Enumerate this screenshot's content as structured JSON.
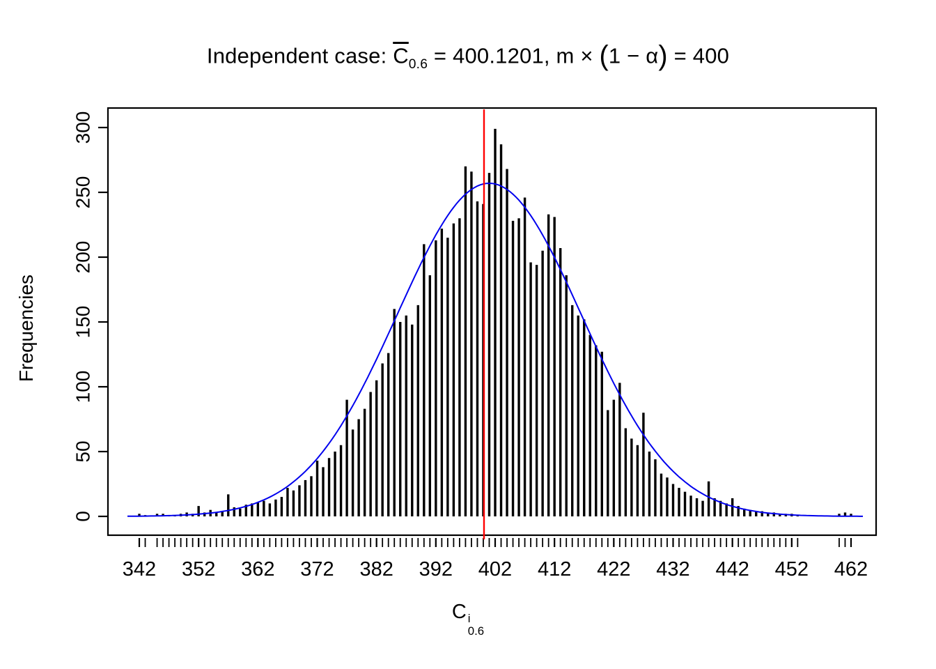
{
  "title": {
    "prefix": "Independent case: ",
    "c_base": "C",
    "c_sub": "0.6",
    "mid": " = 400.1201,  m × ",
    "paren_open": "(",
    "alpha_expr": "1 − α",
    "paren_close": ")",
    "suffix": " = 400"
  },
  "ylabel": "Frequencies",
  "xlabel": {
    "base": "C",
    "sup": "i",
    "sub": "0.6"
  },
  "chart_data": {
    "type": "bar",
    "title": "Independent case: C̄0.6 = 400.1201, m × (1 − α) = 400",
    "xlabel": "C^i_0.6",
    "ylabel": "Frequencies",
    "xlim": [
      342,
      462
    ],
    "ylim": [
      0,
      300
    ],
    "grid": false,
    "legend": false,
    "x_ticks": [
      342,
      352,
      362,
      372,
      382,
      392,
      402,
      412,
      422,
      432,
      442,
      452,
      462
    ],
    "y_ticks": [
      0,
      50,
      100,
      150,
      200,
      250,
      300
    ],
    "x_values": [
      342,
      343,
      344,
      345,
      346,
      347,
      348,
      349,
      350,
      351,
      352,
      353,
      354,
      355,
      356,
      357,
      358,
      359,
      360,
      361,
      362,
      363,
      364,
      365,
      366,
      367,
      368,
      369,
      370,
      371,
      372,
      373,
      374,
      375,
      376,
      377,
      378,
      379,
      380,
      381,
      382,
      383,
      384,
      385,
      386,
      387,
      388,
      389,
      390,
      391,
      392,
      393,
      394,
      395,
      396,
      397,
      398,
      399,
      400,
      401,
      402,
      403,
      404,
      405,
      406,
      407,
      408,
      409,
      410,
      411,
      412,
      413,
      414,
      415,
      416,
      417,
      418,
      419,
      420,
      421,
      422,
      423,
      424,
      425,
      426,
      427,
      428,
      429,
      430,
      431,
      432,
      433,
      434,
      435,
      436,
      437,
      438,
      439,
      440,
      441,
      442,
      443,
      444,
      445,
      446,
      447,
      448,
      449,
      450,
      451,
      452,
      453,
      454,
      455,
      456,
      457,
      458,
      459,
      460,
      461,
      462
    ],
    "frequencies": [
      2,
      1,
      0,
      2,
      2,
      1,
      1,
      2,
      3,
      2,
      8,
      3,
      5,
      3,
      4,
      17,
      7,
      6,
      9,
      10,
      11,
      12,
      10,
      13,
      15,
      22,
      20,
      24,
      28,
      31,
      43,
      38,
      45,
      50,
      55,
      90,
      67,
      75,
      83,
      96,
      105,
      118,
      126,
      160,
      150,
      155,
      148,
      163,
      210,
      186,
      213,
      222,
      215,
      226,
      230,
      270,
      266,
      243,
      241,
      265,
      299,
      287,
      268,
      228,
      230,
      246,
      196,
      194,
      205,
      233,
      231,
      207,
      186,
      163,
      155,
      152,
      140,
      132,
      127,
      82,
      90,
      103,
      68,
      60,
      55,
      80,
      50,
      44,
      33,
      30,
      25,
      22,
      19,
      16,
      14,
      12,
      27,
      14,
      12,
      10,
      14,
      8,
      6,
      5,
      4,
      4,
      3,
      3,
      2,
      2,
      2,
      1,
      0,
      0,
      0,
      0,
      0,
      0,
      2,
      3,
      2
    ],
    "red_line_x": 400.1201,
    "curve": {
      "type": "normal",
      "mean": 401.0,
      "sd": 15.5,
      "peak": 257
    },
    "colors": {
      "bars": "#000000",
      "curve": "#0000ee",
      "red_line": "#ff0000"
    }
  }
}
